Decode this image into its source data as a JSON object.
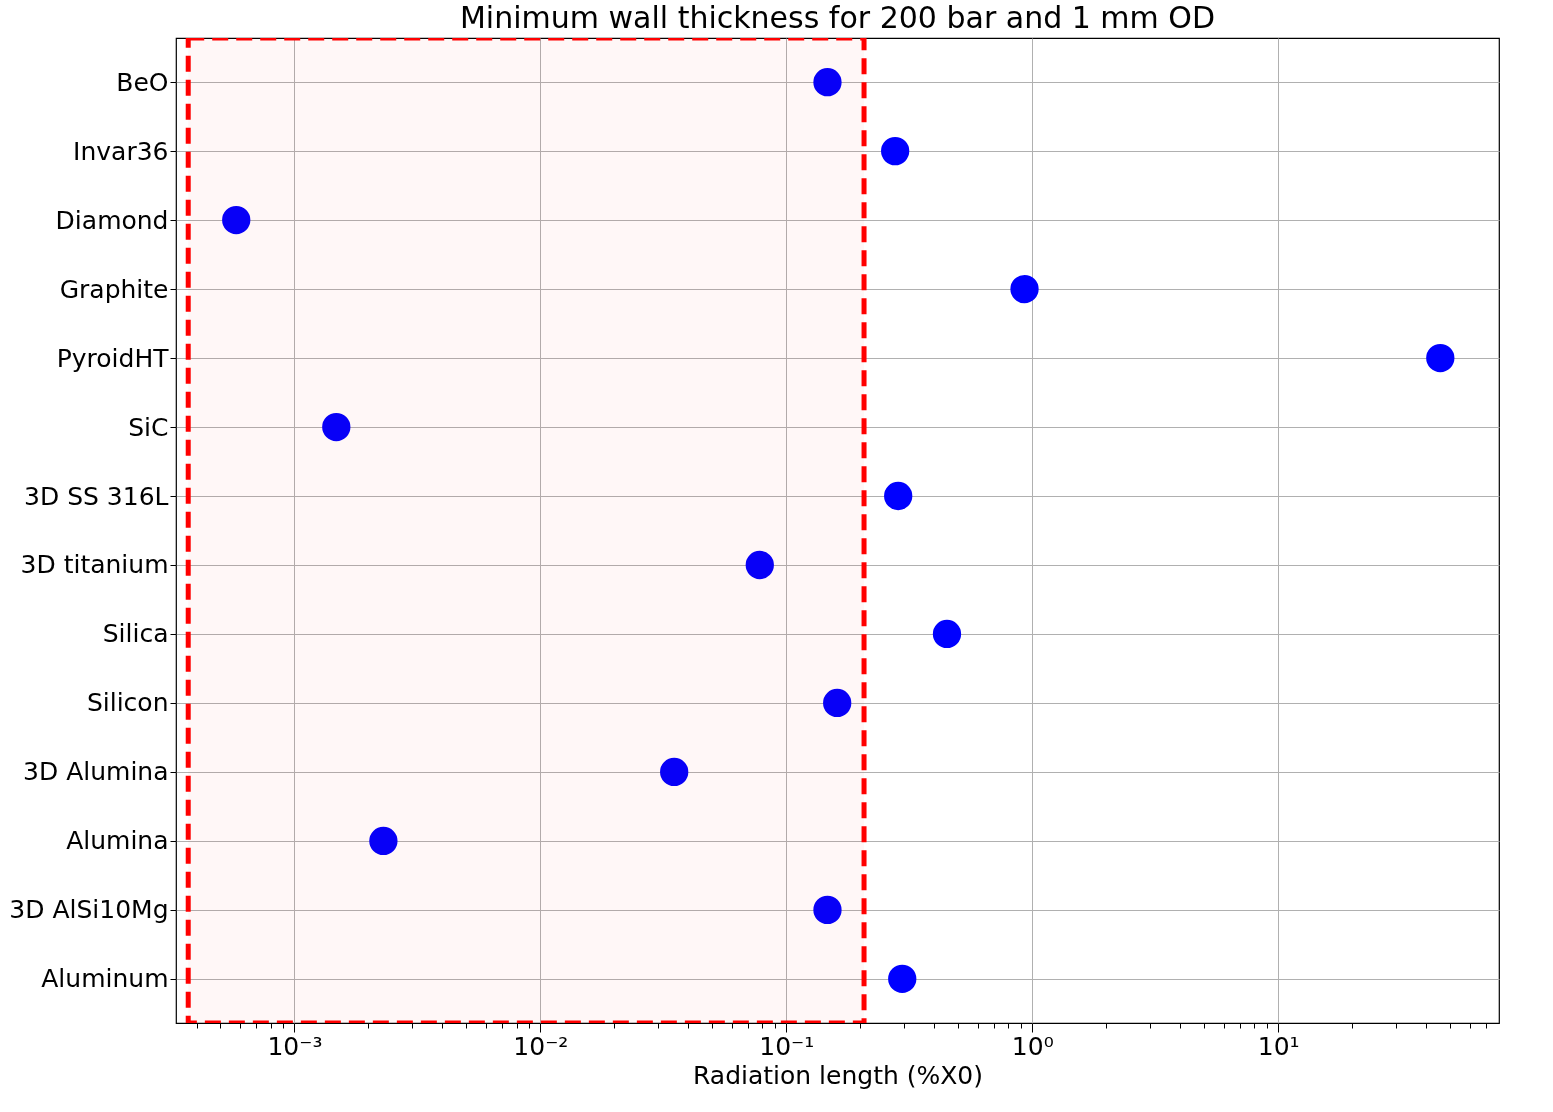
{
  "chart_data": {
    "type": "scatter",
    "title": "Minimum wall thickness for 200 bar and 1 mm OD",
    "xlabel": "Radiation length (%X0)",
    "orientation": "horizontal",
    "marker": "circle",
    "color": "#0000ff",
    "log": "x",
    "grid": true,
    "categories": [
      "BeO",
      "Invar36",
      "Diamond",
      "Graphite",
      "PyroidHT",
      "SiC",
      "3D SS 316L",
      "3D titanium",
      "Silica",
      "Silicon",
      "3D Alumina",
      "Alumina",
      "3D AlSi10Mg",
      "Aluminum"
    ],
    "values": [
      0.147,
      0.277,
      0.00058,
      0.93,
      45.6,
      0.00148,
      0.285,
      0.078,
      0.45,
      0.161,
      0.035,
      0.0023,
      0.147,
      0.296
    ],
    "xlim": [
      0.00033,
      79
    ],
    "xticks": [
      {
        "value": 0.0004,
        "label": null
      },
      {
        "value": 0.0005,
        "label": null
      },
      {
        "value": 0.0006,
        "label": null
      },
      {
        "value": 0.0007,
        "label": null
      },
      {
        "value": 0.0008,
        "label": null
      },
      {
        "value": 0.0009,
        "label": null
      },
      {
        "value": 0.001,
        "label": "10⁻³"
      },
      {
        "value": 0.002,
        "label": null
      },
      {
        "value": 0.003,
        "label": null
      },
      {
        "value": 0.004,
        "label": null
      },
      {
        "value": 0.005,
        "label": null
      },
      {
        "value": 0.006,
        "label": null
      },
      {
        "value": 0.007,
        "label": null
      },
      {
        "value": 0.008,
        "label": null
      },
      {
        "value": 0.009,
        "label": null
      },
      {
        "value": 0.01,
        "label": "10⁻²"
      },
      {
        "value": 0.02,
        "label": null
      },
      {
        "value": 0.03,
        "label": null
      },
      {
        "value": 0.04,
        "label": null
      },
      {
        "value": 0.05,
        "label": null
      },
      {
        "value": 0.06,
        "label": null
      },
      {
        "value": 0.07,
        "label": null
      },
      {
        "value": 0.08,
        "label": null
      },
      {
        "value": 0.09,
        "label": null
      },
      {
        "value": 0.1,
        "label": "10⁻¹"
      },
      {
        "value": 0.2,
        "label": null
      },
      {
        "value": 0.3,
        "label": null
      },
      {
        "value": 0.4,
        "label": null
      },
      {
        "value": 0.5,
        "label": null
      },
      {
        "value": 0.6,
        "label": null
      },
      {
        "value": 0.7,
        "label": null
      },
      {
        "value": 0.8,
        "label": null
      },
      {
        "value": 0.9,
        "label": null
      },
      {
        "value": 1,
        "label": "10⁰"
      },
      {
        "value": 2,
        "label": null
      },
      {
        "value": 3,
        "label": null
      },
      {
        "value": 4,
        "label": null
      },
      {
        "value": 5,
        "label": null
      },
      {
        "value": 6,
        "label": null
      },
      {
        "value": 7,
        "label": null
      },
      {
        "value": 8,
        "label": null
      },
      {
        "value": 9,
        "label": null
      },
      {
        "value": 10,
        "label": "10¹"
      },
      {
        "value": 20,
        "label": null
      },
      {
        "value": 30,
        "label": null
      },
      {
        "value": 40,
        "label": null
      },
      {
        "value": 50,
        "label": null
      },
      {
        "value": 60,
        "label": null
      },
      {
        "value": 70,
        "label": null
      }
    ],
    "bands": [
      {
        "axis": "x",
        "from": 0.00037,
        "to": 0.207,
        "color": "#ff0000"
      }
    ]
  }
}
